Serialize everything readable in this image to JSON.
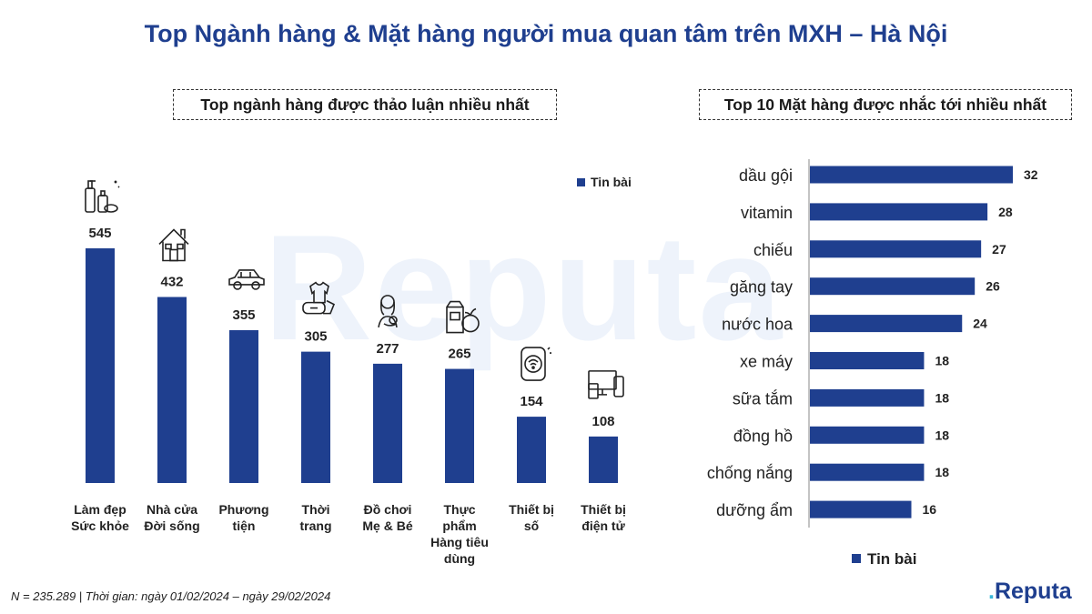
{
  "title": "Top Ngành hàng & Mặt hàng người mua quan tâm trên MXH – Hà Nội",
  "watermark": "Reputa",
  "footnote": "N = 235.289 | Thời gian: ngày 01/02/2024 – ngày 29/02/2024",
  "logo": {
    "text": "Reputa"
  },
  "colors": {
    "bar": "#1f3f8f",
    "title": "#1f3f8f",
    "accent": "#38b6d8"
  },
  "chart_data": [
    {
      "type": "bar",
      "title": "Top ngành hàng được thảo luận nhiều nhất",
      "legend": "Tin bài",
      "legend_position": "top-right",
      "orientation": "vertical",
      "ylim": [
        0,
        545
      ],
      "categories": [
        [
          "Làm đẹp",
          "Sức khỏe"
        ],
        [
          "Nhà cửa",
          "Đời sống"
        ],
        [
          "Phương",
          "tiện"
        ],
        [
          "Thời",
          "trang"
        ],
        [
          "Đồ chơi",
          "Mẹ & Bé"
        ],
        [
          "Thực",
          "phẩm",
          "Hàng tiêu",
          "dùng"
        ],
        [
          "Thiết bị",
          "số"
        ],
        [
          "Thiết bị",
          "điện tử"
        ]
      ],
      "icons": [
        "cosmetics-icon",
        "house-icon",
        "car-icon",
        "clothing-icon",
        "mother-baby-icon",
        "grocery-icon",
        "smartwatch-icon",
        "electronics-icon"
      ],
      "series": [
        {
          "name": "Tin bài",
          "values": [
            545,
            432,
            355,
            305,
            277,
            265,
            154,
            108
          ]
        }
      ]
    },
    {
      "type": "bar",
      "title": "Top 10 Mặt hàng được nhắc tới nhiều nhất",
      "legend": "Tin bài",
      "legend_position": "bottom-left",
      "orientation": "horizontal",
      "xlim": [
        0,
        32
      ],
      "categories": [
        "dầu gội",
        "vitamin",
        "chiếu",
        "găng tay",
        "nước hoa",
        "xe máy",
        "sữa tắm",
        "đồng hồ",
        "chống nắng",
        "dưỡng ẩm"
      ],
      "series": [
        {
          "name": "Tin bài",
          "values": [
            32,
            28,
            27,
            26,
            24,
            18,
            18,
            18,
            18,
            16
          ]
        }
      ]
    }
  ]
}
